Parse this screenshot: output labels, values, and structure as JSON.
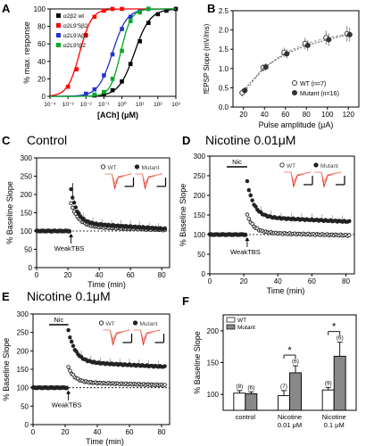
{
  "panels": {
    "A": {
      "letter": "A"
    },
    "B": {
      "letter": "B"
    },
    "C": {
      "letter": "C",
      "title": "Control"
    },
    "D": {
      "letter": "D",
      "title": "Nicotine 0.01μM"
    },
    "E": {
      "letter": "E",
      "title": "Nicotine 0.1μM"
    },
    "F": {
      "letter": "F"
    }
  },
  "chart_data": [
    {
      "id": "A",
      "type": "line",
      "xlabel": "[ACh] (μM)",
      "ylabel": "% max. response",
      "xscale": "log",
      "xlim": [
        0.0001,
        1000
      ],
      "ylim": [
        0,
        100
      ],
      "xticks": [
        "10⁻⁴",
        "10⁻³",
        "10⁻²",
        "10⁻¹",
        "10⁰",
        "10¹",
        "10²",
        "10³"
      ],
      "yticks": [
        "0",
        "20",
        "40",
        "60",
        "80",
        "100"
      ],
      "legend_position": "top-left",
      "series": [
        {
          "name": "α2β2 wt",
          "color": "#000000",
          "ec50": 5.0,
          "hill": 1.0,
          "x": [
            0.03,
            0.1,
            0.3,
            1,
            3,
            10,
            30,
            100,
            300,
            1000
          ],
          "y": [
            1,
            3,
            7,
            17,
            37,
            63,
            84,
            94,
            98,
            100
          ]
        },
        {
          "name": "α2L9'Sβ2",
          "color": "#ff0000",
          "ec50": 0.0045,
          "hill": 1.3,
          "x": [
            0.001,
            0.003,
            0.01,
            0.03,
            0.1,
            0.3,
            1
          ],
          "y": [
            11,
            31,
            70,
            91,
            98,
            100,
            100
          ]
        },
        {
          "name": "α2L9'Aβ2",
          "color": "#2233cc",
          "ec50": 0.3,
          "hill": 1.1,
          "x": [
            0.01,
            0.03,
            0.1,
            0.3,
            1,
            3,
            10,
            30
          ],
          "y": [
            3,
            8,
            24,
            48,
            77,
            91,
            97,
            100
          ]
        },
        {
          "name": "α2L9'Iβ2",
          "color": "#00aa22",
          "ec50": 0.85,
          "hill": 1.5,
          "x": [
            0.03,
            0.1,
            0.3,
            1,
            3,
            10,
            30
          ],
          "y": [
            2,
            5,
            20,
            52,
            86,
            96,
            100
          ]
        }
      ]
    },
    {
      "id": "B",
      "type": "line",
      "xlabel": "Pulse amplitude (μA)",
      "ylabel": "fEPSP Slope (mV/ms)",
      "xlim": [
        10,
        130
      ],
      "ylim": [
        0,
        2.5
      ],
      "xticks": [
        "20",
        "40",
        "60",
        "80",
        "100",
        "120"
      ],
      "yticks": [
        "0.0",
        "0.5",
        "1.0",
        "1.5",
        "2.0",
        "2.5"
      ],
      "legend_position": "bottom-right",
      "series": [
        {
          "name": "WT (n=7)",
          "marker": "open-circle",
          "x": [
            20,
            40,
            60,
            80,
            100,
            120
          ],
          "y": [
            0.37,
            1.02,
            1.42,
            1.65,
            1.8,
            1.9
          ],
          "err": [
            0.1,
            0.1,
            0.12,
            0.15,
            0.18,
            0.2
          ]
        },
        {
          "name": "Mutant (n=16)",
          "marker": "filled-circle",
          "x": [
            20,
            40,
            60,
            80,
            100,
            120
          ],
          "y": [
            0.43,
            1.04,
            1.38,
            1.6,
            1.75,
            1.88
          ],
          "err": [
            0.08,
            0.1,
            0.12,
            0.14,
            0.16,
            0.18
          ]
        }
      ]
    },
    {
      "id": "C",
      "type": "scatter",
      "xlabel": "Time (min)",
      "ylabel": "% Baseline Slope",
      "xlim": [
        0,
        85
      ],
      "ylim": [
        0,
        300
      ],
      "xticks": [
        "0",
        "20",
        "40",
        "60",
        "80"
      ],
      "yticks": [
        "0",
        "50",
        "100",
        "150",
        "200",
        "250",
        "300"
      ],
      "baseline": 100,
      "annotation": "WeakTBS",
      "stim_time": 22,
      "legend": [
        "WT",
        "Mutant"
      ],
      "series": [
        {
          "name": "WT",
          "marker": "open-circle",
          "x": [],
          "y": []
        },
        {
          "name": "Mutant",
          "marker": "filled-circle",
          "x": [],
          "y": []
        }
      ],
      "profile": {
        "wt": {
          "peak": 175,
          "plateau": 112,
          "decay": 5.0,
          "end": 103
        },
        "mut": {
          "peak": 213,
          "plateau": 122,
          "decay": 4.0,
          "end": 106,
          "peak_err": 18
        }
      }
    },
    {
      "id": "D",
      "type": "scatter",
      "xlabel": "Time (min)",
      "ylabel": "% Baseline Slope",
      "xlim": [
        0,
        85
      ],
      "ylim": [
        0,
        300
      ],
      "xticks": [
        "0",
        "20",
        "40",
        "60",
        "80"
      ],
      "yticks": [
        "0",
        "50",
        "100",
        "150",
        "200",
        "250",
        "300"
      ],
      "baseline": 100,
      "annotation": "WeakTBS",
      "drug_label": "Nic",
      "drug_range": [
        10,
        22
      ],
      "stim_time": 22,
      "legend": [
        "WT",
        "Mutant"
      ],
      "profile": {
        "wt": {
          "peak": 150,
          "plateau": 105,
          "decay": 4.0,
          "end": 98
        },
        "mut": {
          "peak": 235,
          "plateau": 145,
          "decay": 4.0,
          "end": 133
        }
      }
    },
    {
      "id": "E",
      "type": "scatter",
      "xlabel": "Time (min)",
      "ylabel": "% Baseline Slope",
      "xlim": [
        0,
        85
      ],
      "ylim": [
        0,
        300
      ],
      "xticks": [
        "0",
        "20",
        "40",
        "60",
        "80"
      ],
      "yticks": [
        "0",
        "50",
        "100",
        "150",
        "200",
        "250",
        "300"
      ],
      "baseline": 100,
      "annotation": "WeakTBS",
      "drug_label": "Nic",
      "drug_range": [
        10,
        22
      ],
      "stim_time": 22,
      "legend": [
        "WT",
        "Mutant"
      ],
      "profile": {
        "wt": {
          "peak": 155,
          "plateau": 115,
          "decay": 4.0,
          "end": 107
        },
        "mut": {
          "peak": 255,
          "plateau": 170,
          "decay": 4.5,
          "end": 157
        }
      }
    },
    {
      "id": "F",
      "type": "bar",
      "ylabel": "% Baseline Slope",
      "ylim": [
        75,
        225
      ],
      "yticks": [
        "100",
        "150",
        "200"
      ],
      "categories": [
        "control",
        "Nicotine\n0.01 μM",
        "Nicotine\n0.1 μM"
      ],
      "legend_position": "top-left",
      "significance": [
        "",
        "*",
        "*"
      ],
      "series": [
        {
          "name": "WT",
          "color": "#ffffff",
          "values": [
            102,
            98,
            107
          ],
          "err": [
            4,
            8,
            4
          ],
          "n": [
            "(8)",
            "(7)",
            "(9)"
          ]
        },
        {
          "name": "Mutant",
          "color": "#888888",
          "values": [
            101,
            134,
            160
          ],
          "err": [
            3,
            11,
            22
          ],
          "n": [
            "(6)",
            "(6)",
            "(6)"
          ]
        }
      ]
    }
  ]
}
